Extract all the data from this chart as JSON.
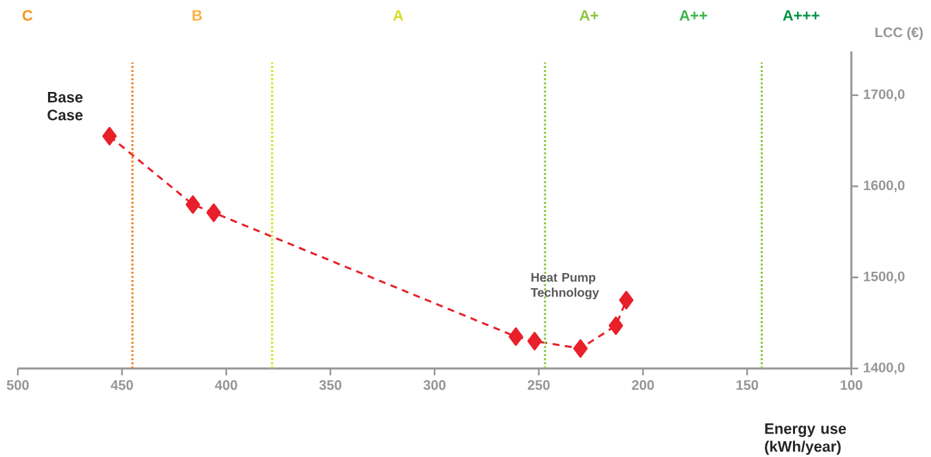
{
  "chart_data": {
    "type": "line",
    "xlabel": "Energy use (kWh/year)",
    "ylabel": "LCC (€)",
    "x": [
      456,
      416,
      406,
      261,
      252,
      230,
      213,
      208
    ],
    "series": [
      {
        "color": "#e8202a",
        "values": [
          1655,
          1580,
          1571,
          1435,
          1430,
          1422,
          1447,
          1475
        ]
      }
    ],
    "xlim": [
      500,
      100
    ],
    "xticks": [
      500,
      450,
      400,
      350,
      300,
      250,
      200,
      150,
      100
    ],
    "ylim": [
      1400,
      1748
    ],
    "yticks": [
      {
        "value": 1400,
        "label": "1400,0"
      },
      {
        "value": 1500,
        "label": "1500,0"
      },
      {
        "value": 1600,
        "label": "1600,0"
      },
      {
        "value": 1700,
        "label": "1700,0"
      }
    ],
    "ref_lines": [
      {
        "axis": "x",
        "value": 445,
        "color": "#f0841c",
        "line_style": "dotted"
      },
      {
        "axis": "x",
        "value": 378,
        "color": "#d4e021",
        "line_style": "dotted"
      },
      {
        "axis": "x",
        "value": 247,
        "color": "#8dc63f",
        "line_style": "dotted"
      },
      {
        "axis": "x",
        "value": 143,
        "color": "#8dc63f",
        "line_style": "dotted"
      }
    ],
    "annotations": [
      "C",
      "B",
      "A",
      "A+",
      "A++",
      "A+++",
      {
        "text": "Base Case",
        "x": 456,
        "y": 1655
      },
      {
        "text": "Heat Pump Technology",
        "x": 247,
        "y": 1510
      }
    ],
    "marker": "diamond",
    "line_style": "dashed"
  }
}
